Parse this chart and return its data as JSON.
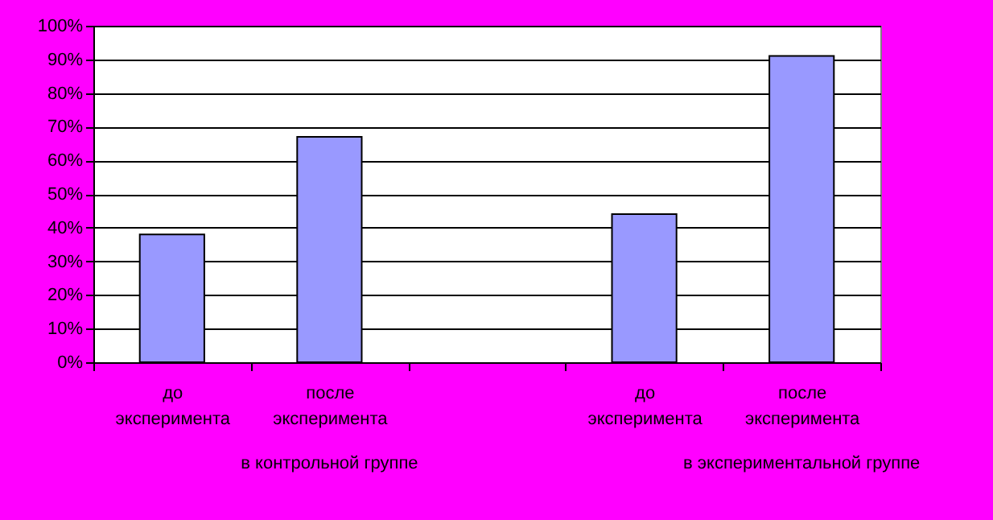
{
  "chart_data": {
    "type": "bar",
    "categories": [
      "до эксперимента",
      "после эксперимента",
      null,
      "до эксперимента",
      "после эксперимента"
    ],
    "values": [
      38,
      67,
      null,
      44,
      91
    ],
    "color": "#9999ff",
    "ylim": [
      0,
      100
    ],
    "yticks": [
      {
        "value": 0,
        "label": "0%"
      },
      {
        "value": 10,
        "label": "10%"
      },
      {
        "value": 20,
        "label": "20%"
      },
      {
        "value": 30,
        "label": "30%"
      },
      {
        "value": 40,
        "label": "40%"
      },
      {
        "value": 50,
        "label": "50%"
      },
      {
        "value": 60,
        "label": "60%"
      },
      {
        "value": 70,
        "label": "70%"
      },
      {
        "value": 80,
        "label": "80%"
      },
      {
        "value": 90,
        "label": "90%"
      },
      {
        "value": 100,
        "label": "100%"
      }
    ],
    "grid": "y",
    "annotations": [
      "в контрольной группе",
      "в экспериментальной группе"
    ]
  }
}
